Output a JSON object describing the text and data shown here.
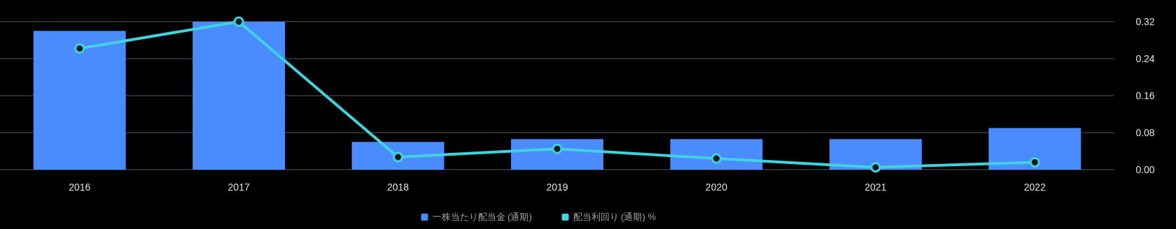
{
  "chart_data": {
    "type": "bar",
    "categories": [
      "2016",
      "2017",
      "2018",
      "2019",
      "2020",
      "2021",
      "2022"
    ],
    "series": [
      {
        "name": "一株当たり配当金 (通期)",
        "color": "#4a8cff",
        "values": [
          0.3,
          0.32,
          0.06,
          0.066,
          0.066,
          0.066,
          0.09
        ]
      },
      {
        "name": "配当利回り (通期) %",
        "type": "line",
        "color": "#3fd3dc",
        "values": [
          0.262,
          0.32,
          0.027,
          0.045,
          0.024,
          0.005,
          0.016
        ]
      }
    ],
    "ylim": [
      0,
      0.32
    ],
    "yticks": [
      {
        "value": 0,
        "label": "0.00"
      },
      {
        "value": 0.08,
        "label": "0.08"
      },
      {
        "value": 0.16,
        "label": "0.16"
      },
      {
        "value": 0.24,
        "label": "0.24"
      },
      {
        "value": 0.32,
        "label": "0.32"
      }
    ],
    "grid": "y",
    "legend": "bottom",
    "marker": "circle",
    "line_style": "solid"
  }
}
